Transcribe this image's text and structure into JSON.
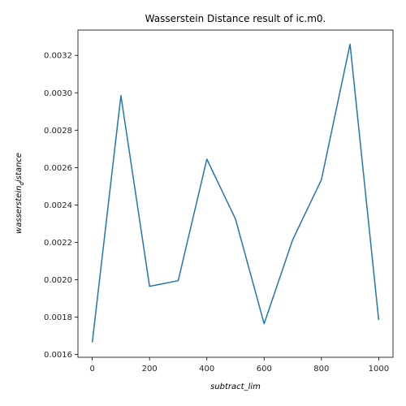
{
  "chart_data": {
    "type": "line",
    "title": "Wasserstein Distance result of ic.m0.",
    "xlabel": "subtract_lim",
    "ylabel": {
      "main": "wasserstein",
      "sub": "d",
      "rest": "istance"
    },
    "x": [
      0,
      100,
      200,
      300,
      400,
      500,
      600,
      700,
      800,
      900,
      1000
    ],
    "series": [
      {
        "values": [
          0.001665,
          0.002985,
          0.001965,
          0.001995,
          0.002645,
          0.002325,
          0.001765,
          0.002215,
          0.002535,
          0.00326,
          0.001785
        ],
        "color": "#1f77b4"
      }
    ],
    "xlim": [
      -50,
      1050
    ],
    "ylim": [
      0.0015855,
      0.0033355
    ],
    "xticks": [
      0,
      200,
      400,
      600,
      800,
      1000
    ],
    "xtick_labels": [
      "0",
      "200",
      "400",
      "600",
      "800",
      "1000"
    ],
    "yticks": [
      0.0016,
      0.0018,
      0.002,
      0.0022,
      0.0024,
      0.0026,
      0.0028,
      0.003,
      0.0032
    ],
    "ytick_labels": [
      "0.0016",
      "0.0018",
      "0.0020",
      "0.0022",
      "0.0024",
      "0.0026",
      "0.0028",
      "0.0030",
      "0.0032"
    ],
    "grid": false,
    "legend": "none"
  }
}
